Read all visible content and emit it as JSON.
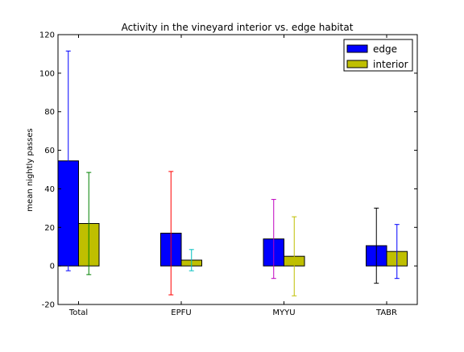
{
  "chart_data": {
    "type": "bar",
    "title": "Activity in the vineyard interior vs. edge habitat",
    "xlabel": "",
    "ylabel": "mean nightly passes",
    "categories": [
      "Total",
      "EPFU",
      "MYYU",
      "TABR"
    ],
    "ylim": [
      -20,
      120
    ],
    "yticks": [
      -20,
      0,
      20,
      40,
      60,
      80,
      100,
      120
    ],
    "grid": false,
    "legend_position": "top-right",
    "series": [
      {
        "name": "edge",
        "color": "#0000ff",
        "values": [
          54.5,
          17,
          14,
          10.5
        ],
        "error": [
          57,
          32,
          20.5,
          19.5
        ],
        "error_colors": [
          "#0000ff",
          "#ff0000",
          "#bf00bf",
          "#000000"
        ]
      },
      {
        "name": "interior",
        "color": "#bfbf00",
        "values": [
          22,
          3,
          5,
          7.5
        ],
        "error": [
          26.5,
          5.5,
          20.5,
          14
        ],
        "error_colors": [
          "#008000",
          "#00bfbf",
          "#bfbf00",
          "#0000ff"
        ]
      }
    ]
  }
}
